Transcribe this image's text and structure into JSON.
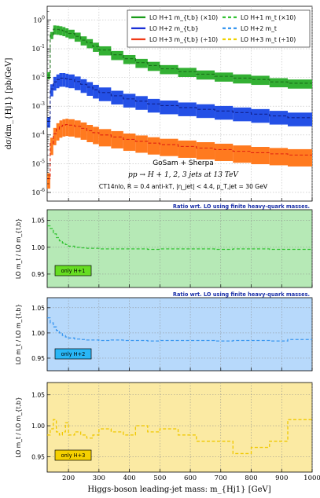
{
  "chart_data": [
    {
      "type": "line",
      "panel": "main",
      "title": "",
      "xlabel": "Higgs-boson leading-jet mass: m_{Hj1} [GeV]",
      "ylabel": "dσ/dm_{Hj1} [pb/GeV]",
      "xlim": [
        130,
        1000
      ],
      "ylim": [
        5e-07,
        3
      ],
      "y_scale": "log",
      "grid": true,
      "legend_position": "top-right",
      "x_ticks": [
        "200",
        "300",
        "400",
        "500",
        "600",
        "700",
        "800",
        "900",
        "1000"
      ],
      "y_ticks": [
        "10^-6",
        "10^-5",
        "10^-4",
        "10^-3",
        "10^-2",
        "10^-1",
        "10^0"
      ],
      "bin_edges": [
        130,
        140,
        150,
        160,
        170,
        180,
        190,
        200,
        220,
        240,
        260,
        280,
        300,
        340,
        380,
        420,
        460,
        500,
        560,
        620,
        680,
        740,
        800,
        860,
        920,
        1000
      ],
      "annotations": [
        "GoSam + Sherpa",
        "pp → H + 1, 2, 3 jets at 13 TeV",
        "CT14nlo, R = 0.4 anti-kT, |η_jet| < 4.4, p_T,jet = 30 GeV"
      ],
      "legend": [
        {
          "label": "LO H+1 m_{t,b} (×10)",
          "style": "solid",
          "color": "#1a9c1a"
        },
        {
          "label": "LO H+2 m_{t,b}",
          "style": "solid",
          "color": "#1a2fd6"
        },
        {
          "label": "LO H+3 m_{t,b} (÷10)",
          "style": "solid",
          "color": "#f03a17"
        },
        {
          "label": "LO H+1 m_t (×10)",
          "style": "dashed",
          "color": "#35c235"
        },
        {
          "label": "LO H+2 m_t",
          "style": "dashed",
          "color": "#3a97f0"
        },
        {
          "label": "LO H+3 m_t (÷10)",
          "style": "dashed",
          "color": "#f0d200"
        }
      ],
      "series": [
        {
          "name": "LO H+1",
          "values": [
            0.012,
            0.3,
            0.48,
            0.47,
            0.45,
            0.42,
            0.38,
            0.34,
            0.27,
            0.2,
            0.16,
            0.12,
            0.09,
            0.062,
            0.045,
            0.033,
            0.026,
            0.02,
            0.016,
            0.013,
            0.011,
            0.0095,
            0.0085,
            0.007,
            0.0063
          ],
          "band_rel": [
            0.28,
            0.28,
            0.35,
            0.35,
            0.35,
            0.35,
            0.35,
            0.35,
            0.35,
            0.35,
            0.35,
            0.35,
            0.35,
            0.35,
            0.35,
            0.35,
            0.35,
            0.35,
            0.35,
            0.35,
            0.35,
            0.35,
            0.35,
            0.35,
            0.35
          ],
          "band_color": "#33b033",
          "line_color": "#1b6e1b"
        },
        {
          "name": "LO H+2",
          "values": [
            0.0003,
            0.004,
            0.007,
            0.0085,
            0.0095,
            0.0095,
            0.009,
            0.0085,
            0.0072,
            0.0058,
            0.0046,
            0.0037,
            0.003,
            0.0023,
            0.0018,
            0.0015,
            0.0012,
            0.00105,
            0.0009,
            0.00078,
            0.00068,
            0.0006,
            0.00053,
            0.00046,
            0.0004
          ],
          "band_rel": [
            0.4,
            0.45,
            0.5,
            0.5,
            0.5,
            0.5,
            0.5,
            0.5,
            0.5,
            0.5,
            0.5,
            0.5,
            0.5,
            0.5,
            0.5,
            0.5,
            0.5,
            0.5,
            0.5,
            0.5,
            0.5,
            0.5,
            0.5,
            0.5,
            0.5
          ],
          "band_color": "#2450e6",
          "line_color": "#10208a"
        },
        {
          "name": "LO H+3",
          "values": [
            3e-06,
            5e-05,
            0.00011,
            0.00016,
            0.0002,
            0.00022,
            0.00023,
            0.00022,
            0.0002,
            0.00017,
            0.00014,
            0.00012,
            0.0001,
            8.5e-05,
            7e-05,
            6e-05,
            5.2e-05,
            4.6e-05,
            4e-05,
            3.5e-05,
            3.1e-05,
            2.7e-05,
            2.4e-05,
            2.2e-05,
            2e-05
          ],
          "band_rel": [
            0.55,
            0.6,
            0.6,
            0.6,
            0.6,
            0.6,
            0.6,
            0.6,
            0.6,
            0.6,
            0.6,
            0.6,
            0.6,
            0.6,
            0.6,
            0.6,
            0.6,
            0.6,
            0.6,
            0.6,
            0.6,
            0.6,
            0.6,
            0.6,
            0.6
          ],
          "band_color": "#ff7a1f",
          "line_color": "#e02010"
        }
      ]
    },
    {
      "type": "line",
      "panel": "ratio",
      "title": "Ratio wrt. LO using finite heavy-quark masses.",
      "ylabel": "LO m_t / LO m_{t,b}",
      "ylim": [
        0.925,
        1.07
      ],
      "y_ticks": [
        "0.95",
        "1.00",
        "1.05"
      ],
      "box_label": "only H+1",
      "box_color": "#66dd22",
      "fill": "#b6e9b6",
      "line_color": "#33c233",
      "x": [
        130,
        140,
        150,
        160,
        170,
        180,
        190,
        200,
        220,
        240,
        260,
        280,
        300,
        340,
        380,
        420,
        460,
        500,
        560,
        620,
        680,
        740,
        800,
        860,
        920,
        1000
      ],
      "values": [
        1.04,
        1.035,
        1.025,
        1.018,
        1.012,
        1.008,
        1.005,
        1.002,
        1.0,
        0.999,
        0.998,
        0.998,
        0.997,
        0.997,
        0.997,
        0.997,
        0.996,
        0.997,
        0.997,
        0.997,
        0.996,
        0.997,
        0.997,
        0.996,
        0.996,
        0.996
      ]
    },
    {
      "type": "line",
      "panel": "ratio",
      "title": "Ratio wrt. LO using finite heavy-quark masses.",
      "ylabel": "LO m_t / LO m_{t,b}",
      "ylim": [
        0.925,
        1.07
      ],
      "y_ticks": [
        "0.95",
        "1.00",
        "1.05"
      ],
      "box_label": "only H+2",
      "box_color": "#29b6f6",
      "fill": "#b7d9fb",
      "line_color": "#3a97f0",
      "x": [
        130,
        140,
        150,
        160,
        170,
        180,
        190,
        200,
        220,
        240,
        260,
        280,
        300,
        340,
        380,
        420,
        460,
        500,
        560,
        620,
        680,
        740,
        800,
        860,
        920,
        1000
      ],
      "values": [
        1.03,
        1.02,
        1.012,
        1.005,
        1.0,
        0.995,
        0.992,
        0.99,
        0.988,
        0.987,
        0.986,
        0.986,
        0.985,
        0.986,
        0.985,
        0.985,
        0.984,
        0.985,
        0.985,
        0.985,
        0.984,
        0.985,
        0.985,
        0.984,
        0.987,
        0.987
      ]
    },
    {
      "type": "line",
      "panel": "ratio",
      "title": "",
      "ylabel": "LO m_t / LO m_{t,b}",
      "ylim": [
        0.925,
        1.07
      ],
      "y_ticks": [
        "0.95",
        "1.00",
        "1.05"
      ],
      "box_label": "only H+3",
      "box_color": "#f5d000",
      "fill": "#fbeaa3",
      "line_color": "#f0c800",
      "x": [
        130,
        140,
        150,
        160,
        170,
        180,
        190,
        200,
        220,
        240,
        260,
        280,
        300,
        340,
        380,
        420,
        460,
        500,
        560,
        620,
        680,
        740,
        800,
        860,
        920,
        1000
      ],
      "values": [
        0.985,
        0.995,
        1.01,
        0.99,
        0.985,
        0.99,
        1.005,
        0.985,
        0.99,
        0.985,
        0.98,
        0.985,
        0.995,
        0.99,
        0.985,
        1.0,
        0.99,
        0.995,
        0.985,
        0.975,
        0.975,
        0.955,
        0.965,
        0.975,
        1.01,
        1.01
      ]
    }
  ]
}
